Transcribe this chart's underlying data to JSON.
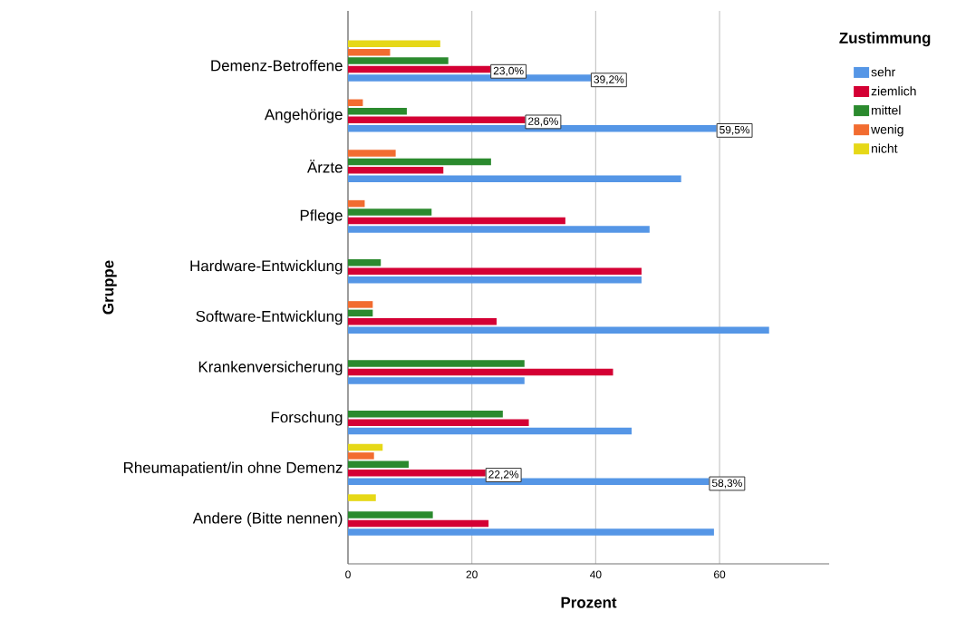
{
  "chart_data": {
    "type": "bar",
    "orientation": "horizontal",
    "xlabel": "Prozent",
    "ylabel": "Gruppe",
    "legend_title": "Zustimmung",
    "categories": [
      "Demenz-Betroffene",
      "Angehörige",
      "Ärzte",
      "Pflege",
      "Hardware-Entwicklung",
      "Software-Entwicklung",
      "Krankenversicherung",
      "Forschung",
      "Rheumapatient/in ohne Demenz",
      "Andere (Bitte nennen)"
    ],
    "series": [
      {
        "name": "sehr",
        "color": "#5596e6",
        "values": [
          39.2,
          59.5,
          53.8,
          48.7,
          47.4,
          68.0,
          28.5,
          45.8,
          58.3,
          59.1
        ],
        "value_labels": [
          "39,2%",
          "59,5%",
          null,
          null,
          null,
          null,
          null,
          null,
          "58,3%",
          null
        ]
      },
      {
        "name": "ziemlich",
        "color": "#d40034",
        "values": [
          23.0,
          28.6,
          15.4,
          35.1,
          47.4,
          24.0,
          42.8,
          29.2,
          22.2,
          22.7
        ],
        "value_labels": [
          "23,0%",
          "28,6%",
          null,
          null,
          null,
          null,
          null,
          null,
          "22,2%",
          null
        ]
      },
      {
        "name": "mittel",
        "color": "#2b8a2e",
        "values": [
          16.2,
          9.5,
          23.1,
          13.5,
          5.3,
          4.0,
          28.5,
          25.0,
          9.8,
          13.7
        ]
      },
      {
        "name": "wenig",
        "color": "#f26c30",
        "values": [
          6.8,
          2.4,
          7.7,
          2.7,
          null,
          4.0,
          null,
          null,
          4.2,
          null
        ]
      },
      {
        "name": "nicht",
        "color": "#e6d817",
        "values": [
          14.9,
          null,
          null,
          null,
          null,
          null,
          null,
          null,
          5.6,
          4.5
        ]
      }
    ],
    "xlim": [
      0,
      77.7
    ],
    "xticks": [
      0,
      20,
      40,
      60
    ],
    "grid": "x",
    "legend": "top right"
  }
}
